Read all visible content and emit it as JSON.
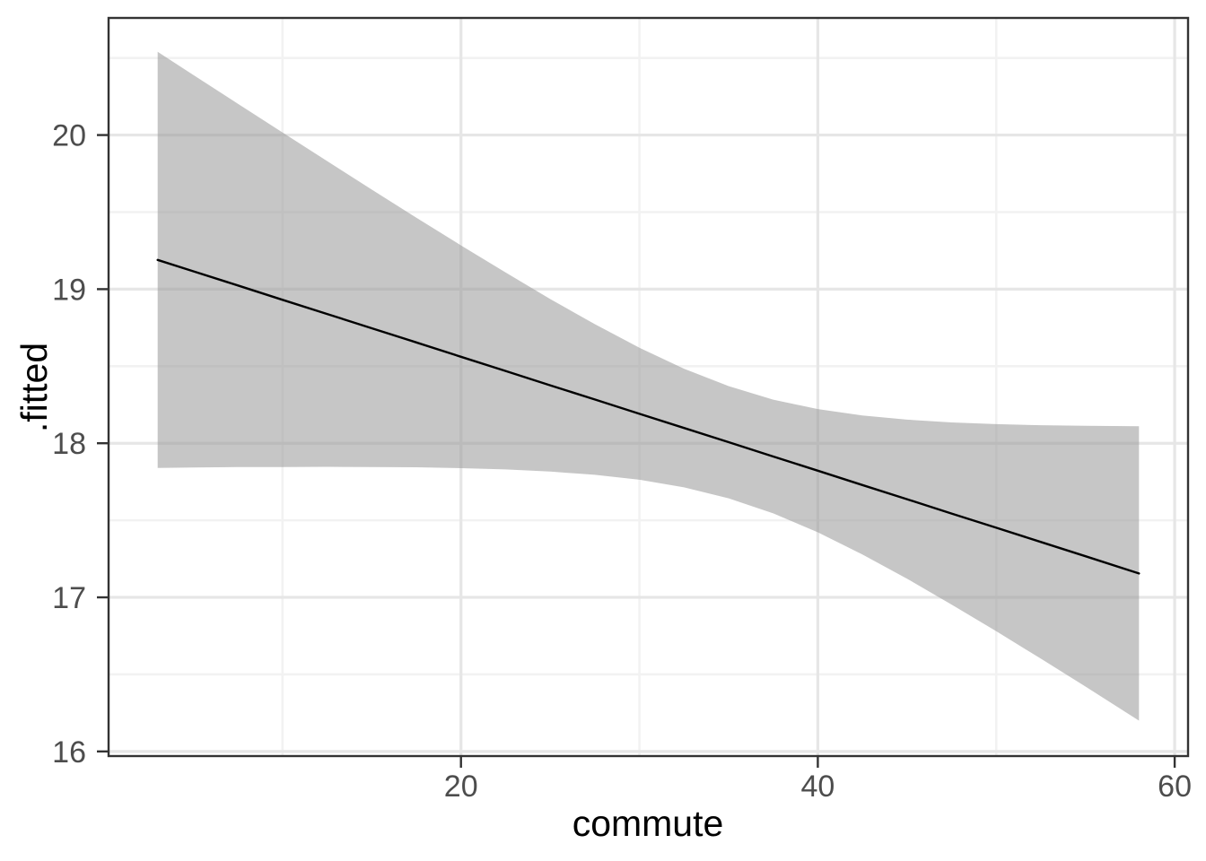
{
  "figure": {
    "background": "#ffffff"
  },
  "chart_data": {
    "type": "line",
    "title": "",
    "xlabel": "commute",
    "ylabel": ".fitted",
    "xlim": [
      0.25,
      60.75
    ],
    "ylim": [
      15.97,
      20.76
    ],
    "x_major_ticks": [
      20,
      40,
      60
    ],
    "x_minor_gridlines": [
      10,
      30,
      50
    ],
    "y_major_ticks": [
      16,
      17,
      18,
      19,
      20
    ],
    "y_minor_gridlines": [
      16.5,
      17.5,
      18.5,
      19.5,
      20.5
    ],
    "grid": "major+minor",
    "legend": "none",
    "x": [
      3,
      5,
      7.5,
      10,
      12.5,
      15,
      17.5,
      20,
      22.5,
      25,
      27.5,
      30,
      32.5,
      35,
      37.5,
      40,
      42.5,
      45,
      47.5,
      50,
      52.5,
      55,
      58
    ],
    "series": [
      {
        "name": "fitted-regression-line",
        "type": "line",
        "color": "#000000",
        "values": [
          19.19,
          19.116,
          19.024,
          18.931,
          18.839,
          18.746,
          18.654,
          18.561,
          18.469,
          18.376,
          18.284,
          18.191,
          18.099,
          18.007,
          17.914,
          17.822,
          17.729,
          17.637,
          17.544,
          17.452,
          17.359,
          17.267,
          17.155
        ]
      },
      {
        "name": "confidence-ribbon",
        "type": "ribbon",
        "fill": "#999999",
        "opacity": 0.56,
        "upper": [
          20.54,
          20.39,
          20.203,
          20.016,
          19.831,
          19.646,
          19.464,
          19.284,
          19.108,
          18.936,
          18.773,
          18.62,
          18.484,
          18.371,
          18.283,
          18.222,
          18.18,
          18.153,
          18.135,
          18.124,
          18.117,
          18.113,
          18.11
        ],
        "lower": [
          17.84,
          17.843,
          17.845,
          17.846,
          17.847,
          17.846,
          17.844,
          17.838,
          17.83,
          17.816,
          17.795,
          17.763,
          17.714,
          17.643,
          17.545,
          17.422,
          17.278,
          17.121,
          16.953,
          16.78,
          16.602,
          16.421,
          16.2
        ]
      }
    ],
    "colors": {
      "panel_border": "#333333",
      "tick_mark": "#333333",
      "tick_label": "#4d4d4d",
      "grid_major": "#e6e6e6",
      "grid_minor": "#f2f2f2",
      "panel_background": "#ffffff",
      "line": "#000000",
      "ribbon": "#999999"
    }
  }
}
